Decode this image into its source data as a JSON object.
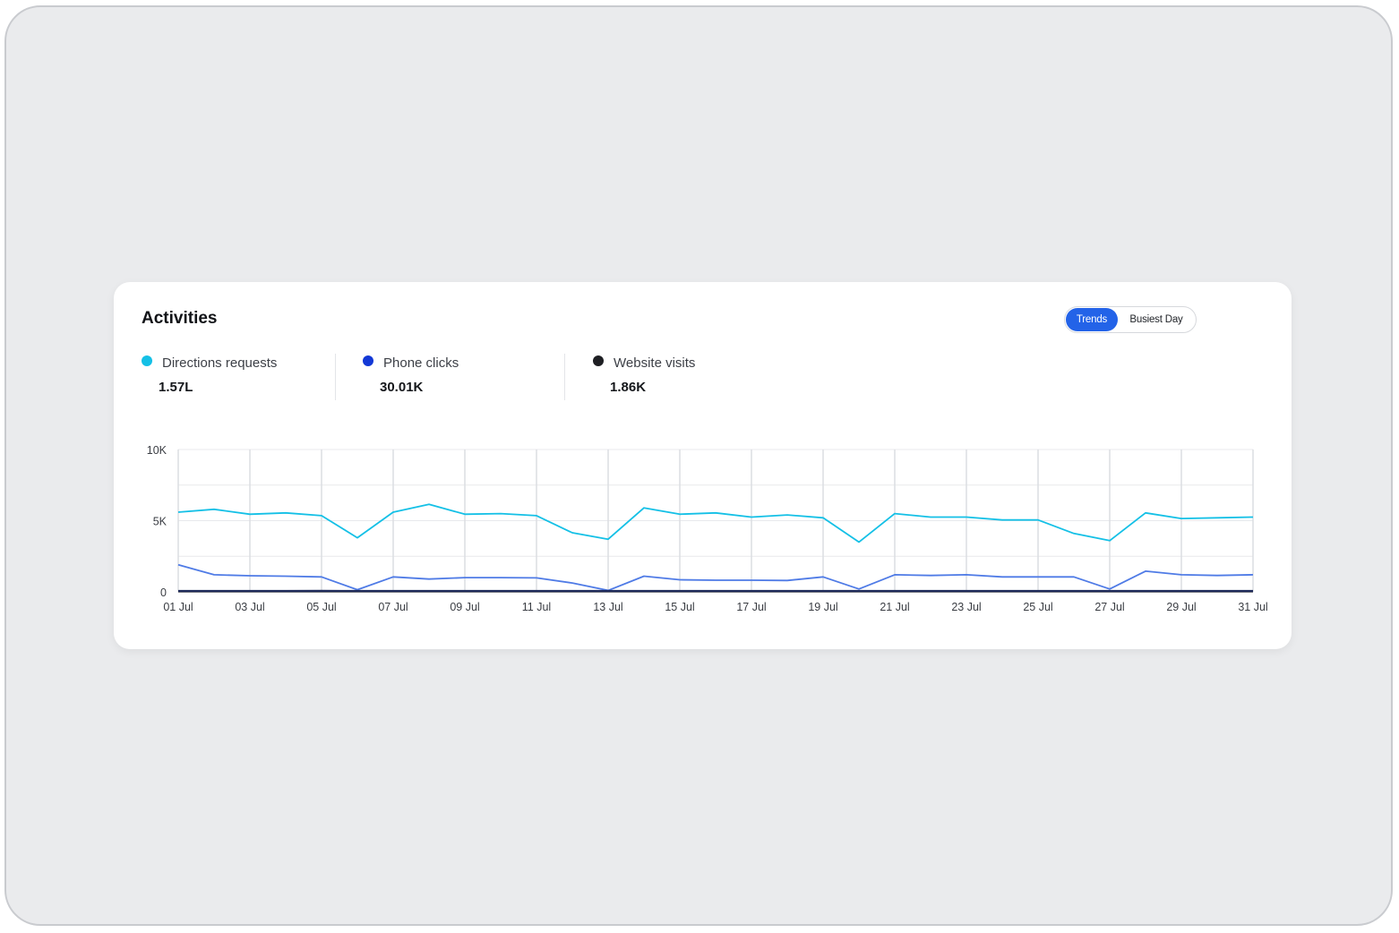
{
  "card": {
    "title": "Activities",
    "toggle": {
      "active": "Trends",
      "inactive": "Busiest Day"
    },
    "metrics": [
      {
        "label": "Directions requests",
        "value": "1.57L",
        "color": "#14c0e6"
      },
      {
        "label": "Phone clicks",
        "value": "30.01K",
        "color": "#1238d6"
      },
      {
        "label": "Website visits",
        "value": "1.86K",
        "color": "#1e1f23"
      }
    ]
  },
  "chart_data": {
    "type": "line",
    "x": [
      "01 Jul",
      "02 Jul",
      "03 Jul",
      "04 Jul",
      "05 Jul",
      "06 Jul",
      "07 Jul",
      "08 Jul",
      "09 Jul",
      "10 Jul",
      "11 Jul",
      "12 Jul",
      "13 Jul",
      "14 Jul",
      "15 Jul",
      "16 Jul",
      "17 Jul",
      "18 Jul",
      "19 Jul",
      "20 Jul",
      "21 Jul",
      "22 Jul",
      "23 Jul",
      "24 Jul",
      "25 Jul",
      "26 Jul",
      "27 Jul",
      "28 Jul",
      "29 Jul",
      "30 Jul",
      "31 Jul"
    ],
    "xticks": [
      "01 Jul",
      "03 Jul",
      "05 Jul",
      "07 Jul",
      "09 Jul",
      "11 Jul",
      "13 Jul",
      "15 Jul",
      "17 Jul",
      "19 Jul",
      "21 Jul",
      "23 Jul",
      "25 Jul",
      "27 Jul",
      "29 Jul",
      "31 Jul"
    ],
    "yticks": [
      {
        "value": 0,
        "label": "0"
      },
      {
        "value": 5000,
        "label": "5K"
      },
      {
        "value": 10000,
        "label": "10K"
      }
    ],
    "ylim": [
      0,
      10000
    ],
    "grid": true,
    "series": [
      {
        "name": "Directions requests",
        "color": "#14c0e6",
        "values": [
          5600,
          5800,
          5450,
          5550,
          5350,
          3800,
          5600,
          6150,
          5450,
          5500,
          5350,
          4150,
          3700,
          5900,
          5450,
          5550,
          5250,
          5400,
          5200,
          3500,
          5500,
          5250,
          5250,
          5050,
          5050,
          4100,
          3600,
          5550,
          5150,
          5200,
          5250
        ]
      },
      {
        "name": "Phone clicks",
        "color": "#4f7be6",
        "values": [
          1900,
          1200,
          1130,
          1100,
          1050,
          150,
          1050,
          900,
          1000,
          1000,
          980,
          620,
          100,
          1100,
          850,
          820,
          820,
          800,
          1050,
          200,
          1200,
          1150,
          1200,
          1050,
          1050,
          1050,
          200,
          1450,
          1200,
          1150,
          1200
        ]
      },
      {
        "name": "Website visits",
        "color": "#1e2a5a",
        "values": [
          60,
          60,
          60,
          60,
          70,
          60,
          60,
          60,
          60,
          60,
          60,
          60,
          60,
          60,
          60,
          60,
          60,
          60,
          60,
          60,
          60,
          60,
          60,
          60,
          60,
          60,
          60,
          60,
          60,
          60,
          60
        ]
      }
    ]
  }
}
